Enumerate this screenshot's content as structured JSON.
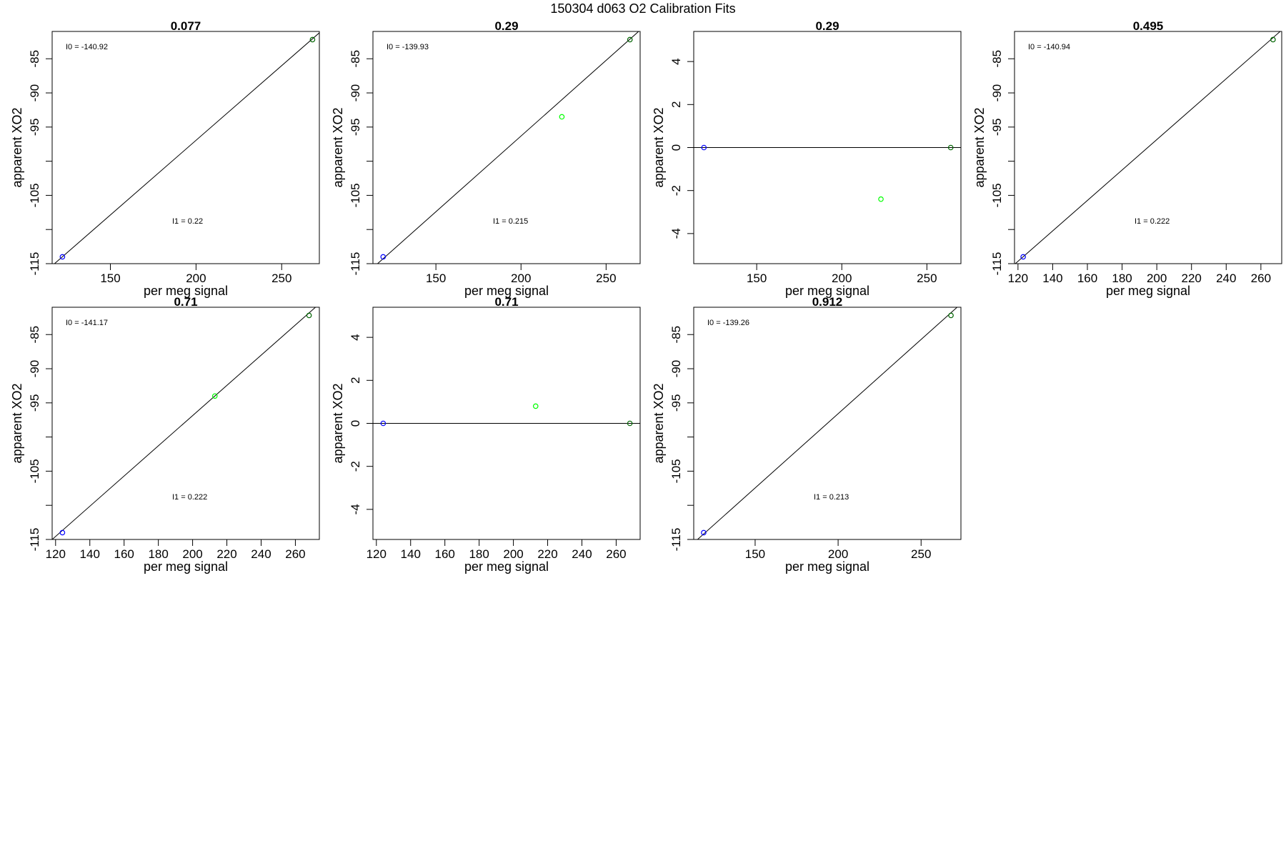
{
  "page": {
    "title": "150304   d063   O2 Calibration Fits"
  },
  "chart_data": [
    {
      "type": "scatter",
      "title": "0.077",
      "xlabel": "per meg signal",
      "ylabel": "apparent XO2",
      "xlim": [
        116,
        272
      ],
      "ylim": [
        -115,
        -81
      ],
      "xticks": [
        150,
        200,
        250
      ],
      "yticks": [
        -85,
        -90,
        -95,
        -100,
        -105,
        -110,
        -115
      ],
      "ytick_labels": [
        "-85",
        "-90",
        "-95",
        "",
        "-105",
        "",
        "-115"
      ],
      "points": [
        {
          "x": 122,
          "y": -114.0,
          "color": "#0000ff"
        },
        {
          "x": 268,
          "y": -82.2,
          "color": "#006400"
        }
      ],
      "fit_line": {
        "x": [
          116,
          272
        ],
        "y": [
          -115.3,
          -81.2
        ]
      },
      "annotations": {
        "i0": "I0 =  -140.92",
        "i1": "I1 =  0.22"
      }
    },
    {
      "type": "scatter",
      "title": "0.29",
      "xlabel": "per meg signal",
      "ylabel": "apparent XO2",
      "xlim": [
        113,
        270
      ],
      "ylim": [
        -115,
        -81
      ],
      "xticks": [
        150,
        200,
        250
      ],
      "yticks": [
        -85,
        -90,
        -95,
        -100,
        -105,
        -110,
        -115
      ],
      "ytick_labels": [
        "-85",
        "-90",
        "-95",
        "",
        "-105",
        "",
        "-115"
      ],
      "points": [
        {
          "x": 119,
          "y": -114.0,
          "color": "#0000ff"
        },
        {
          "x": 224,
          "y": -93.5,
          "color": "#00ff00"
        },
        {
          "x": 264,
          "y": -82.2,
          "color": "#006400"
        }
      ],
      "fit_line": {
        "x": [
          113,
          270
        ],
        "y": [
          -115.6,
          -80.8
        ]
      },
      "annotations": {
        "i0": "I0 =  -139.93",
        "i1": "I1 =  0.215"
      }
    },
    {
      "type": "scatter",
      "title": "0.29",
      "xlabel": "per meg signal",
      "ylabel": "apparent XO2",
      "xlim": [
        113,
        270
      ],
      "ylim": [
        -5.4,
        5.4
      ],
      "xticks": [
        150,
        200,
        250
      ],
      "yticks": [
        4,
        2,
        0,
        -2,
        -4
      ],
      "ytick_labels": [
        "4",
        "2",
        "0",
        "-2",
        "-4"
      ],
      "points": [
        {
          "x": 119,
          "y": 0,
          "color": "#0000ff"
        },
        {
          "x": 223,
          "y": -2.4,
          "color": "#00ff00"
        },
        {
          "x": 264,
          "y": 0,
          "color": "#006400"
        }
      ],
      "fit_line": {
        "x": [
          113,
          270
        ],
        "y": [
          0,
          0
        ]
      },
      "annotations": {
        "i0": "",
        "i1": ""
      }
    },
    {
      "type": "scatter",
      "title": "0.495",
      "xlabel": "per meg signal",
      "ylabel": "apparent XO2",
      "xlim": [
        118,
        272
      ],
      "ylim": [
        -115,
        -81
      ],
      "xticks": [
        120,
        140,
        160,
        180,
        200,
        220,
        240,
        260
      ],
      "yticks": [
        -85,
        -90,
        -95,
        -100,
        -105,
        -110,
        -115
      ],
      "ytick_labels": [
        "-85",
        "-90",
        "-95",
        "",
        "-105",
        "",
        "-115"
      ],
      "points": [
        {
          "x": 123,
          "y": -114.0,
          "color": "#0000ff"
        },
        {
          "x": 267,
          "y": -82.2,
          "color": "#006400"
        }
      ],
      "fit_line": {
        "x": [
          118,
          272
        ],
        "y": [
          -115.1,
          -80.8
        ]
      },
      "annotations": {
        "i0": "I0 =  -140.94",
        "i1": "I1 =  0.222"
      }
    },
    {
      "type": "scatter",
      "title": "0.71",
      "xlabel": "per meg signal",
      "ylabel": "apparent XO2",
      "xlim": [
        118,
        274
      ],
      "ylim": [
        -115,
        -81
      ],
      "xticks": [
        120,
        140,
        160,
        180,
        200,
        220,
        240,
        260
      ],
      "yticks": [
        -85,
        -90,
        -95,
        -100,
        -105,
        -110,
        -115
      ],
      "ytick_labels": [
        "-85",
        "-90",
        "-95",
        "",
        "-105",
        "",
        "-115"
      ],
      "points": [
        {
          "x": 124,
          "y": -114.0,
          "color": "#0000ff"
        },
        {
          "x": 213,
          "y": -94.0,
          "color": "#00ff00"
        },
        {
          "x": 268,
          "y": -82.2,
          "color": "#006400"
        }
      ],
      "fit_line": {
        "x": [
          118,
          274
        ],
        "y": [
          -115.0,
          -80.5
        ]
      },
      "annotations": {
        "i0": "I0 =  -141.17",
        "i1": "I1 =  0.222"
      }
    },
    {
      "type": "scatter",
      "title": "0.71",
      "xlabel": "per meg signal",
      "ylabel": "apparent XO2",
      "xlim": [
        118,
        274
      ],
      "ylim": [
        -5.4,
        5.4
      ],
      "xticks": [
        120,
        140,
        160,
        180,
        200,
        220,
        240,
        260
      ],
      "yticks": [
        4,
        2,
        0,
        -2,
        -4
      ],
      "ytick_labels": [
        "4",
        "2",
        "0",
        "-2",
        "-4"
      ],
      "points": [
        {
          "x": 124,
          "y": 0,
          "color": "#0000ff"
        },
        {
          "x": 213,
          "y": 0.8,
          "color": "#00ff00"
        },
        {
          "x": 268,
          "y": 0,
          "color": "#006400"
        }
      ],
      "fit_line": {
        "x": [
          118,
          274
        ],
        "y": [
          0,
          0
        ]
      },
      "annotations": {
        "i0": "",
        "i1": ""
      }
    },
    {
      "type": "scatter",
      "title": "0.912",
      "xlabel": "per meg signal",
      "ylabel": "apparent XO2",
      "xlim": [
        113,
        274
      ],
      "ylim": [
        -115,
        -81
      ],
      "xticks": [
        150,
        200,
        250
      ],
      "yticks": [
        -85,
        -90,
        -95,
        -100,
        -105,
        -110,
        -115
      ],
      "ytick_labels": [
        "-85",
        "-90",
        "-95",
        "",
        "-105",
        "",
        "-115"
      ],
      "points": [
        {
          "x": 119,
          "y": -114.0,
          "color": "#0000ff"
        },
        {
          "x": 268,
          "y": -82.2,
          "color": "#006400"
        }
      ],
      "fit_line": {
        "x": [
          113,
          274
        ],
        "y": [
          -115.5,
          -80.5
        ]
      },
      "annotations": {
        "i0": "I0 =  -139.26",
        "i1": "I1 =  0.213"
      }
    }
  ]
}
